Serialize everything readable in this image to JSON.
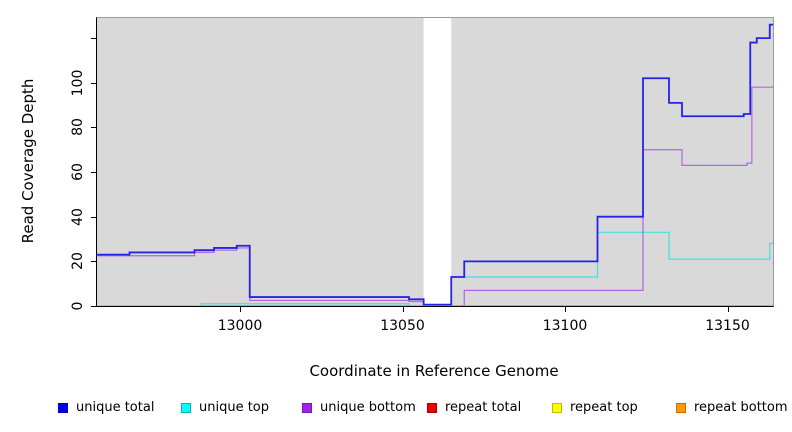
{
  "figure": {
    "background": "#ffffff"
  },
  "chart_data": {
    "type": "line",
    "subtype": "step-coverage-plot",
    "title": "",
    "xlabel": "Coordinate in Reference Genome",
    "ylabel": "Read Coverage Depth",
    "xlim": [
      12956,
      13164
    ],
    "ylim": [
      0,
      129
    ],
    "panel_bg": "#d9d9d9",
    "panel_border": "#9c9c9c",
    "axis_color": "#000000",
    "grid": "off",
    "legend_position": "bottom",
    "x_ticks": [
      {
        "value": 13000,
        "label": "13000"
      },
      {
        "value": 13050,
        "label": "13050"
      },
      {
        "value": 13100,
        "label": "13100"
      },
      {
        "value": 13150,
        "label": "13150"
      }
    ],
    "y_ticks": [
      {
        "value": 0,
        "label": "0"
      },
      {
        "value": 20,
        "label": "20"
      },
      {
        "value": 40,
        "label": "40"
      },
      {
        "value": 60,
        "label": "60"
      },
      {
        "value": 80,
        "label": "80"
      },
      {
        "value": 100,
        "label": "100"
      },
      {
        "value": 120,
        "label": ""
      }
    ],
    "gap_band": {
      "x_start": 13056.5,
      "x_end": 13065,
      "color": "#ffffff"
    },
    "series": [
      {
        "name": "repeat total",
        "color": "#e00000",
        "width": 1.2,
        "opacity": 1,
        "points": [
          [
            12956,
            0
          ],
          [
            13164,
            0
          ]
        ]
      },
      {
        "name": "unique top",
        "color": "#45dede",
        "width": 1.2,
        "opacity": 1,
        "points": [
          [
            12956,
            0
          ],
          [
            12988,
            1
          ],
          [
            13052,
            0
          ],
          [
            13065,
            13
          ],
          [
            13110,
            33
          ],
          [
            13132,
            21
          ],
          [
            13163,
            28
          ],
          [
            13164,
            28
          ]
        ]
      },
      {
        "name": "repeat top",
        "color": "#e8e800",
        "width": 1.2,
        "opacity": 0.6,
        "points": [
          [
            12956,
            0
          ],
          [
            13164,
            0
          ]
        ]
      },
      {
        "name": "unique bottom",
        "color": "#b065e6",
        "width": 1.2,
        "opacity": 1,
        "points": [
          [
            12956,
            22.5
          ],
          [
            12986,
            24
          ],
          [
            12992,
            25
          ],
          [
            12999,
            26
          ],
          [
            13003,
            2.5
          ],
          [
            13052,
            2
          ],
          [
            13056.5,
            0
          ],
          [
            13069,
            7
          ],
          [
            13124,
            70
          ],
          [
            13136,
            63
          ],
          [
            13156,
            64
          ],
          [
            13157.5,
            98
          ],
          [
            13164,
            98
          ]
        ]
      },
      {
        "name": "repeat bottom",
        "color": "#ff9a1e",
        "width": 1.4,
        "opacity": 1,
        "points": [
          [
            12988,
            0
          ],
          [
            13164,
            0
          ]
        ]
      },
      {
        "name": "unique total",
        "color": "#2424e8",
        "width": 1.8,
        "opacity": 1,
        "points": [
          [
            12956,
            23
          ],
          [
            12966,
            24
          ],
          [
            12986,
            25
          ],
          [
            12992,
            26
          ],
          [
            12999,
            27
          ],
          [
            13003,
            4
          ],
          [
            13052,
            3
          ],
          [
            13056.5,
            0.6
          ],
          [
            13065,
            13
          ],
          [
            13069,
            20
          ],
          [
            13110,
            40
          ],
          [
            13124,
            102
          ],
          [
            13132,
            91
          ],
          [
            13136,
            85
          ],
          [
            13155,
            86
          ],
          [
            13157,
            118
          ],
          [
            13159,
            120
          ],
          [
            13163,
            126
          ],
          [
            13164,
            126
          ]
        ]
      }
    ],
    "legend": [
      {
        "label": "unique total",
        "fill": "#0000ee",
        "border": "#0000bb"
      },
      {
        "label": "unique top",
        "fill": "#00ffff",
        "border": "#00b9b9"
      },
      {
        "label": "unique bottom",
        "fill": "#a020f0",
        "border": "#7a18b8"
      },
      {
        "label": "repeat total",
        "fill": "#ee0000",
        "border": "#b00000"
      },
      {
        "label": "repeat top",
        "fill": "#ffff00",
        "border": "#bdbd00"
      },
      {
        "label": "repeat bottom",
        "fill": "#ff9900",
        "border": "#c27100"
      }
    ]
  }
}
